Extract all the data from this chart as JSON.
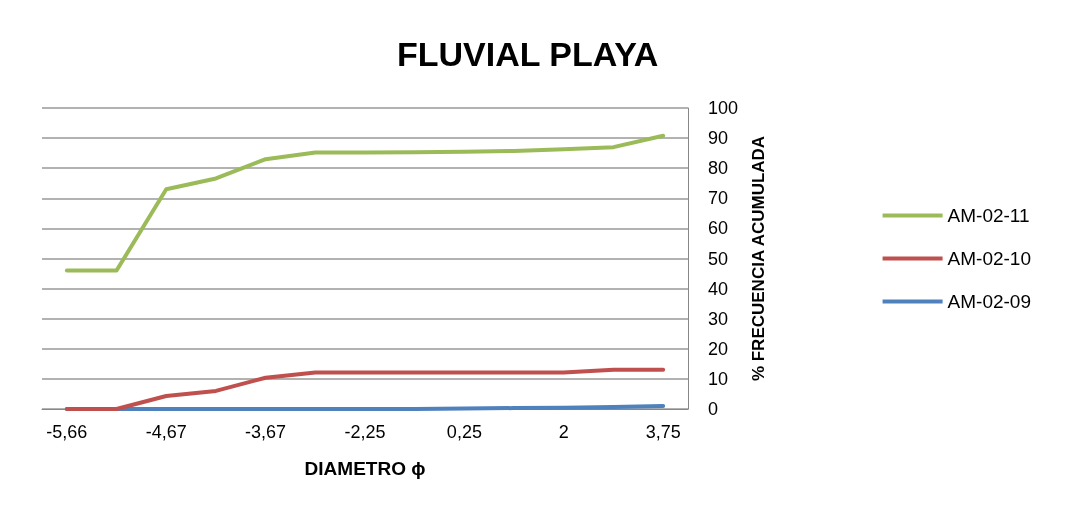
{
  "chart_data": {
    "type": "line",
    "title": "FLUVIAL PLAYA",
    "xlabel": "DIAMETRO ϕ",
    "ylabel": "% FRECUENCIA ACUMULADA",
    "categories": [
      "-5,66",
      null,
      "-4,67",
      null,
      "-3,67",
      null,
      "-2,25",
      null,
      "0,25",
      null,
      "2",
      null,
      "3,75"
    ],
    "series": [
      {
        "name": "AM-02-11",
        "color": "#9bbb59",
        "values": [
          46,
          46,
          73,
          76.6,
          83,
          85.2,
          85.2,
          85.3,
          85.5,
          85.7,
          86.3,
          87,
          90.8
        ]
      },
      {
        "name": "AM-02-10",
        "color": "#c0504d",
        "values": [
          0,
          0,
          4.3,
          6,
          10.4,
          12.1,
          12.1,
          12.1,
          12.1,
          12.1,
          12.1,
          13,
          13
        ]
      },
      {
        "name": "AM-02-09",
        "color": "#4f81bd",
        "values": [
          0,
          0,
          0,
          0,
          0,
          0,
          0,
          0,
          0.2,
          0.3,
          0.4,
          0.7,
          1
        ]
      }
    ],
    "ylim": [
      0,
      100
    ],
    "yticks": [
      0,
      10,
      20,
      30,
      40,
      50,
      60,
      70,
      80,
      90,
      100
    ],
    "grid": "y",
    "legend": "right",
    "marker": "none",
    "line_style": "solid"
  }
}
